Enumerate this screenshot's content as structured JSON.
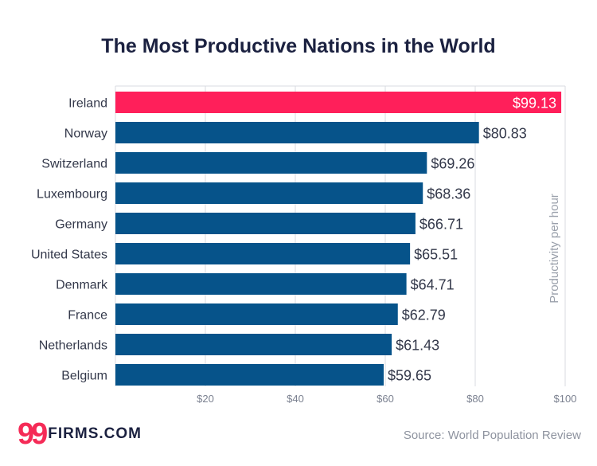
{
  "chart_data": {
    "type": "bar",
    "orientation": "horizontal",
    "title": "The Most Productive Nations in the World",
    "ylabel": "Productivity per hour",
    "categories": [
      "Ireland",
      "Norway",
      "Switzerland",
      "Luxembourg",
      "Germany",
      "United States",
      "Denmark",
      "France",
      "Netherlands",
      "Belgium"
    ],
    "values": [
      99.13,
      80.83,
      69.26,
      68.36,
      66.71,
      65.51,
      64.71,
      62.79,
      61.43,
      59.65
    ],
    "value_labels": [
      "$99.13",
      "$80.83",
      "$69.26",
      "$68.36",
      "$66.71",
      "$65.51",
      "$64.71",
      "$62.79",
      "$61.43",
      "$59.65"
    ],
    "x_ticks": [
      20,
      40,
      60,
      80,
      100
    ],
    "x_tick_labels": [
      "$20",
      "$40",
      "$60",
      "$80",
      "$100"
    ],
    "xlim": [
      0,
      100
    ],
    "grid": true,
    "colors": {
      "highlight": "#ff1f5a",
      "bar": "#06538a"
    },
    "highlight_index": 0
  },
  "footer": {
    "logo_mark": "99",
    "logo_text": "FIRMS.COM",
    "source": "Source: World Population Review"
  }
}
